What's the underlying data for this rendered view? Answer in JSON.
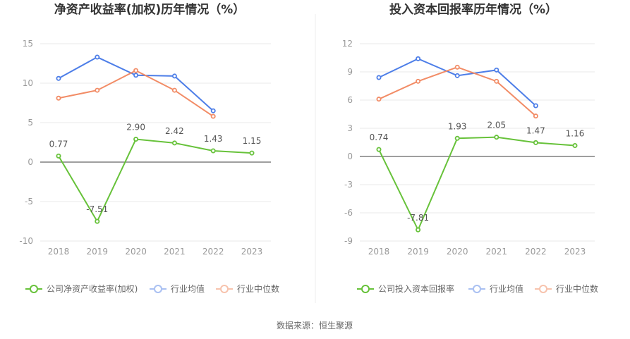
{
  "source": "数据来源：恒生聚源",
  "chart_data": [
    {
      "type": "line",
      "title": "净资产收益率(加权)历年情况（%）",
      "categories": [
        "2018",
        "2019",
        "2020",
        "2021",
        "2022",
        "2023"
      ],
      "ylim": [
        -10,
        15
      ],
      "yticks": [
        "15",
        "10",
        "5",
        "0",
        "-5",
        "-10"
      ],
      "grid": true,
      "legend": "bottom",
      "series": [
        {
          "name": "公司净资产收益率(加权)",
          "color": "#67c23a",
          "values": [
            0.77,
            -7.51,
            2.9,
            2.42,
            1.43,
            1.15
          ],
          "labels": [
            "0.77",
            "-7.51",
            "2.90",
            "2.42",
            "1.43",
            "1.15"
          ]
        },
        {
          "name": "行业均值",
          "color": "#4d7ee8",
          "values": [
            10.6,
            13.3,
            11.0,
            10.9,
            6.5,
            null
          ]
        },
        {
          "name": "行业中位数",
          "color": "#f28c66",
          "values": [
            8.1,
            9.1,
            11.6,
            9.1,
            5.8,
            null
          ]
        }
      ]
    },
    {
      "type": "line",
      "title": "投入资本回报率历年情况（%）",
      "categories": [
        "2018",
        "2019",
        "2020",
        "2021",
        "2022",
        "2023"
      ],
      "ylim": [
        -9,
        12
      ],
      "yticks": [
        "12",
        "9",
        "6",
        "3",
        "0",
        "-3",
        "-6",
        "-9"
      ],
      "grid": true,
      "legend": "bottom",
      "series": [
        {
          "name": "公司投入资本回报率",
          "color": "#67c23a",
          "values": [
            0.74,
            -7.81,
            1.93,
            2.05,
            1.47,
            1.16
          ],
          "labels": [
            "0.74",
            "-7.81",
            "1.93",
            "2.05",
            "1.47",
            "1.16"
          ]
        },
        {
          "name": "行业均值",
          "color": "#4d7ee8",
          "values": [
            8.4,
            10.4,
            8.6,
            9.2,
            5.4,
            null
          ]
        },
        {
          "name": "行业中位数",
          "color": "#f28c66",
          "values": [
            6.1,
            8.0,
            9.5,
            8.0,
            4.3,
            null
          ]
        }
      ]
    }
  ]
}
